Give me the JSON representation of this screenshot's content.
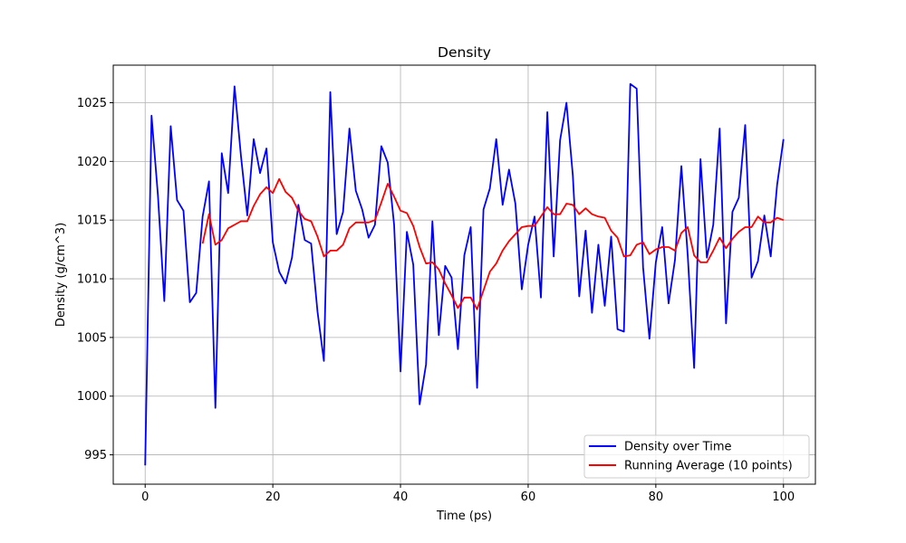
{
  "chart_data": {
    "type": "line",
    "title": "Density",
    "xlabel": "Time (ps)",
    "ylabel": "Density (g/cm^3)",
    "xlim": [
      -5,
      105
    ],
    "ylim": [
      992.5,
      1028.2
    ],
    "xticks": [
      0,
      20,
      40,
      60,
      80,
      100
    ],
    "yticks": [
      995,
      1000,
      1005,
      1010,
      1015,
      1020,
      1025
    ],
    "grid": true,
    "legend_position": "lower right",
    "series": [
      {
        "name": "Density over Time",
        "color": "#0000ff",
        "x": [
          0,
          1,
          2,
          3,
          4,
          5,
          6,
          7,
          8,
          9,
          10,
          11,
          12,
          13,
          14,
          15,
          16,
          17,
          18,
          19,
          20,
          21,
          22,
          23,
          24,
          25,
          26,
          27,
          28,
          29,
          30,
          31,
          32,
          33,
          34,
          35,
          36,
          37,
          38,
          39,
          40,
          41,
          42,
          43,
          44,
          45,
          46,
          47,
          48,
          49,
          50,
          51,
          52,
          53,
          54,
          55,
          56,
          57,
          58,
          59,
          60,
          61,
          62,
          63,
          64,
          65,
          66,
          67,
          68,
          69,
          70,
          71,
          72,
          73,
          74,
          75,
          76,
          77,
          78,
          79,
          80,
          81,
          82,
          83,
          84,
          85,
          86,
          87,
          88,
          89,
          90,
          91,
          92,
          93,
          94,
          95,
          96,
          97,
          98,
          99,
          100
        ],
        "y": [
          994.1,
          1023.9,
          1017.1,
          1008.1,
          1023.0,
          1016.7,
          1015.8,
          1008.0,
          1008.8,
          1015.3,
          1018.3,
          999.0,
          1020.7,
          1017.3,
          1026.4,
          1020.5,
          1015.4,
          1021.9,
          1019.0,
          1021.1,
          1013.1,
          1010.6,
          1009.6,
          1011.8,
          1016.3,
          1013.3,
          1013.0,
          1007.2,
          1003.0,
          1025.9,
          1013.8,
          1015.7,
          1022.8,
          1017.5,
          1015.9,
          1013.5,
          1014.6,
          1021.3,
          1019.9,
          1014.6,
          1002.1,
          1014.0,
          1011.2,
          999.3,
          1002.7,
          1014.9,
          1005.2,
          1011.1,
          1010.1,
          1004.0,
          1012.0,
          1014.4,
          1000.7,
          1015.9,
          1017.7,
          1021.9,
          1016.3,
          1019.3,
          1016.4,
          1009.1,
          1012.9,
          1015.3,
          1008.4,
          1024.2,
          1011.9,
          1021.8,
          1025.0,
          1018.8,
          1008.5,
          1014.1,
          1007.1,
          1012.9,
          1007.7,
          1013.6,
          1005.7,
          1005.5,
          1026.6,
          1026.2,
          1011.0,
          1004.9,
          1011.4,
          1014.4,
          1007.9,
          1011.6,
          1019.6,
          1012.0,
          1002.4,
          1020.2,
          1011.8,
          1014.6,
          1022.8,
          1006.2,
          1015.7,
          1016.9,
          1023.1,
          1010.1,
          1011.5,
          1015.4,
          1011.9,
          1018.0,
          1021.9
        ]
      },
      {
        "name": "Running Average (10 points)",
        "color": "#ff0000",
        "x": [
          9,
          10,
          11,
          12,
          13,
          14,
          15,
          16,
          17,
          18,
          19,
          20,
          21,
          22,
          23,
          24,
          25,
          26,
          27,
          28,
          29,
          30,
          31,
          32,
          33,
          34,
          35,
          36,
          37,
          38,
          39,
          40,
          41,
          42,
          43,
          44,
          45,
          46,
          47,
          48,
          49,
          50,
          51,
          52,
          53,
          54,
          55,
          56,
          57,
          58,
          59,
          60,
          61,
          62,
          63,
          64,
          65,
          66,
          67,
          68,
          69,
          70,
          71,
          72,
          73,
          74,
          75,
          76,
          77,
          78,
          79,
          80,
          81,
          82,
          83,
          84,
          85,
          86,
          87,
          88,
          89,
          90,
          91,
          92,
          93,
          94,
          95,
          96,
          97,
          98,
          99,
          100
        ],
        "y": [
          1013.0,
          1015.5,
          1012.9,
          1013.3,
          1014.3,
          1014.6,
          1014.9,
          1014.9,
          1016.2,
          1017.2,
          1017.8,
          1017.3,
          1018.5,
          1017.4,
          1016.9,
          1015.8,
          1015.1,
          1014.9,
          1013.6,
          1011.9,
          1012.4,
          1012.4,
          1012.9,
          1014.3,
          1014.8,
          1014.8,
          1014.8,
          1015.0,
          1016.5,
          1018.1,
          1017.0,
          1015.8,
          1015.6,
          1014.5,
          1012.7,
          1011.3,
          1011.4,
          1010.8,
          1009.6,
          1008.6,
          1007.5,
          1008.4,
          1008.4,
          1007.4,
          1009.0,
          1010.6,
          1011.3,
          1012.4,
          1013.2,
          1013.8,
          1014.4,
          1014.5,
          1014.5,
          1015.3,
          1016.1,
          1015.5,
          1015.5,
          1016.4,
          1016.3,
          1015.5,
          1016.0,
          1015.5,
          1015.3,
          1015.2,
          1014.1,
          1013.5,
          1011.9,
          1012.0,
          1012.9,
          1013.1,
          1012.1,
          1012.5,
          1012.7,
          1012.7,
          1012.4,
          1013.9,
          1014.4,
          1012.0,
          1011.4,
          1011.4,
          1012.4,
          1013.5,
          1012.6,
          1013.4,
          1014.0,
          1014.4,
          1014.4,
          1015.3,
          1014.8,
          1014.8,
          1015.2,
          1015.0
        ]
      }
    ]
  }
}
